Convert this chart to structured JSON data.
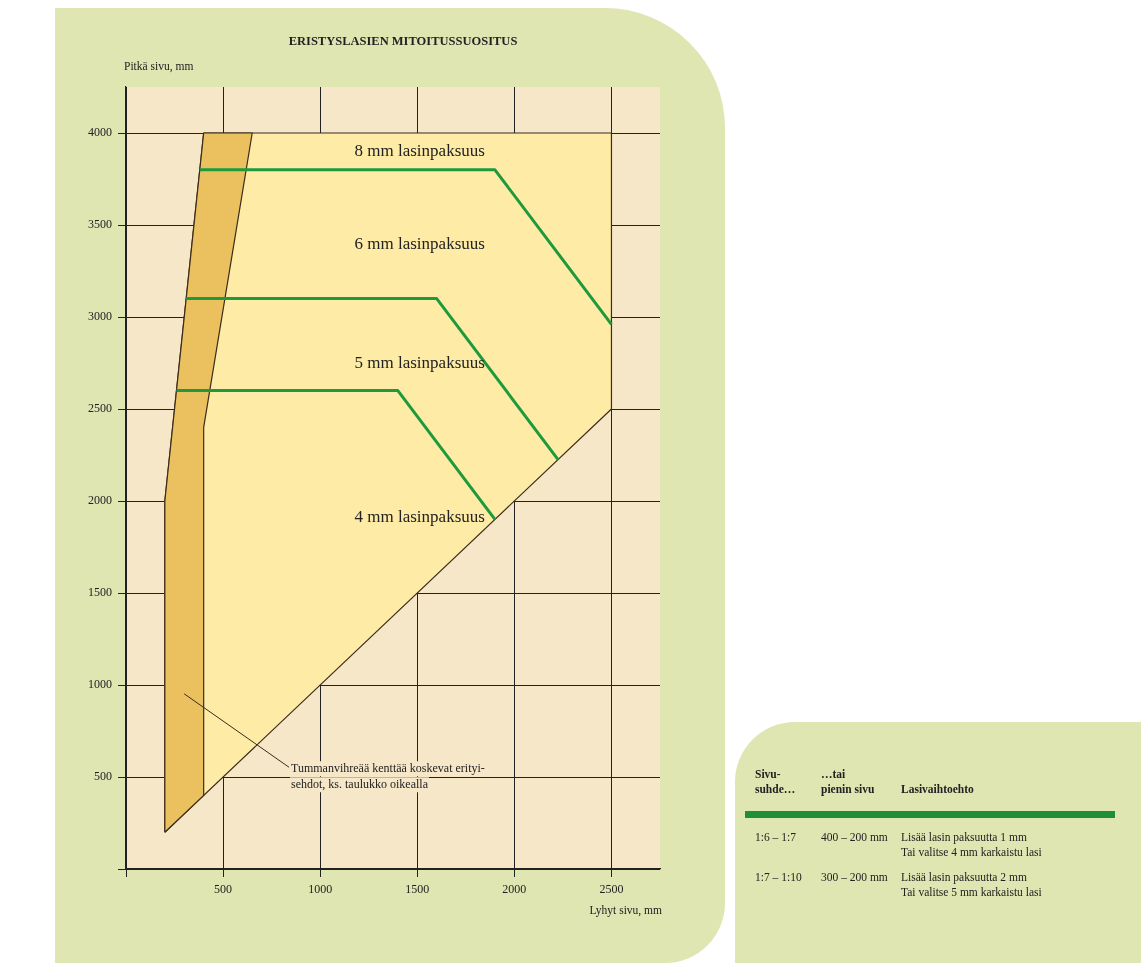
{
  "chart_data": [
    {
      "type": "line",
      "title": "ERISTYSLASIEN MITOITUSSUOSITUS",
      "xlabel": "Lyhyt sivu, mm",
      "ylabel": "Pitkä sivu, mm",
      "xlim": [
        0,
        2750
      ],
      "ylim": [
        0,
        4250
      ],
      "xticks": [
        {
          "value": 0,
          "label": null
        },
        500,
        1000,
        1500,
        2000,
        2500
      ],
      "yticks": [
        {
          "value": 0,
          "label": null
        },
        500,
        1000,
        1500,
        2000,
        2500,
        3000,
        3500,
        4000
      ],
      "grid": true,
      "legend": false,
      "series": [
        {
          "type": "area",
          "color": "#feeba5",
          "x": [
            200,
            200,
            400,
            2500,
            2500,
            200
          ],
          "values": [
            200,
            2000,
            4000,
            4000,
            2500,
            200
          ]
        },
        {
          "type": "area",
          "color": "#ebc05f",
          "x": [
            200,
            200,
            400,
            650,
            400,
            400,
            200
          ],
          "values": [
            200,
            2000,
            4000,
            4000,
            2400,
            400,
            200
          ]
        },
        {
          "type": "line",
          "color": "#1e9a3c",
          "x": [
            380,
            1900,
            2500
          ],
          "values": [
            3800,
            3800,
            2960
          ]
        },
        {
          "type": "line",
          "color": "#1e9a3c",
          "x": [
            310,
            1600,
            2225
          ],
          "values": [
            3100,
            3100,
            2225
          ]
        },
        {
          "type": "line",
          "color": "#1e9a3c",
          "x": [
            260,
            1400,
            1900
          ],
          "values": [
            2600,
            2600,
            1900
          ]
        }
      ],
      "annotations": [
        "8 mm lasinpaksuus",
        "6 mm lasinpaksuus",
        "5 mm lasinpaksuus",
        "4 mm lasinpaksuus",
        "Tummanvihreää kenttää koskevat erityi-\nsehdot, ks. taulukko oikealla"
      ]
    },
    {
      "type": "other",
      "annotations": [
        "Sivu-\nsuhde…",
        "…tai\npienin sivu",
        "Lasivaihtoehto",
        "1:6 – 1:7",
        "400 – 200 mm",
        "Lisää lasin paksuutta 1 mm\nTai valitse 4 mm karkaistu lasi",
        "1:7 – 1:10",
        "300 – 200 mm",
        "Lisää lasin paksuutta 2 mm\nTai valitse 5 mm karkaistu lasi"
      ]
    }
  ]
}
